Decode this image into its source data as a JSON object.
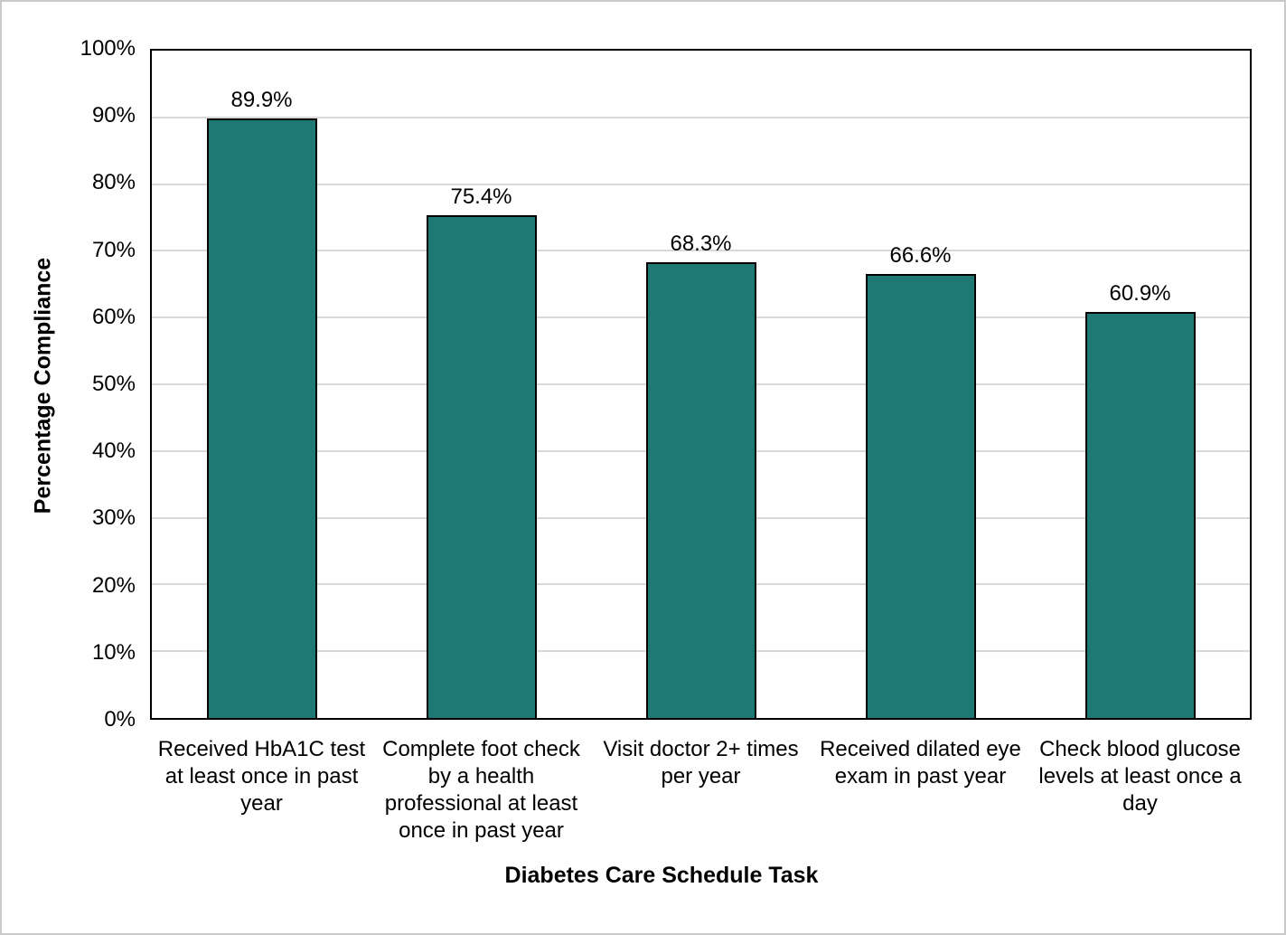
{
  "chart_data": {
    "type": "bar",
    "categories": [
      "Received HbA1C test at least once in past year",
      "Complete foot check by a health professional at least once in past year",
      "Visit doctor 2+ times per year",
      "Received dilated eye exam in past year",
      "Check blood glucose levels at least once a day"
    ],
    "values": [
      89.9,
      75.4,
      68.3,
      66.6,
      60.9
    ],
    "value_labels": [
      "89.9%",
      "75.4%",
      "68.3%",
      "66.6%",
      "60.9%"
    ],
    "xlabel": "Diabetes Care Schedule Task",
    "ylabel": "Percentage Compliance",
    "ylim": [
      0,
      100
    ],
    "y_tick_interval": 10,
    "y_tick_labels": [
      "0%",
      "10%",
      "20%",
      "30%",
      "40%",
      "50%",
      "60%",
      "70%",
      "80%",
      "90%",
      "100%"
    ],
    "grid": true,
    "legend": "none",
    "bar_color": "#1e7873",
    "bar_border_color": "#000000",
    "gridline_color": "#d9d9d9",
    "plot_border_color": "#000000",
    "figure_border_color": "#c9c9c9",
    "text_color": "#000000"
  }
}
